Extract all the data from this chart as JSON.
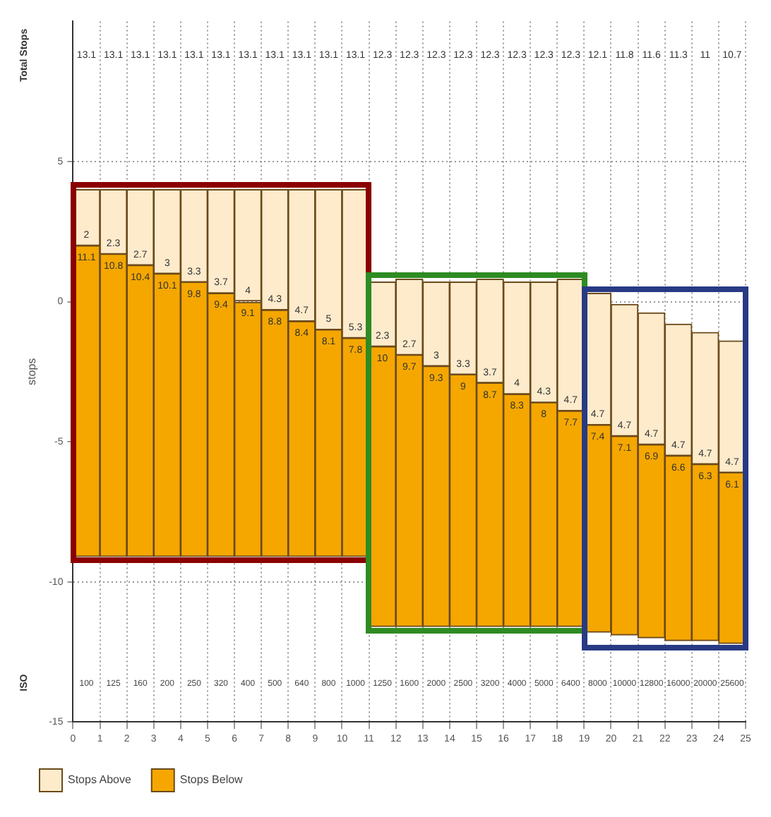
{
  "chart_data": {
    "type": "bar",
    "ylabel": "stops",
    "categories": [
      "100",
      "125",
      "160",
      "200",
      "250",
      "320",
      "400",
      "500",
      "640",
      "800",
      "1000",
      "1250",
      "1600",
      "2000",
      "2500",
      "3200",
      "4000",
      "5000",
      "6400",
      "8000",
      "10000",
      "12800",
      "16000",
      "20000",
      "25600"
    ],
    "series": [
      {
        "name": "Stops Below",
        "color": "#f5a700",
        "base": [
          -9.1,
          -9.1,
          -9.1,
          -9.1,
          -9.1,
          -9.1,
          -9.1,
          -9.1,
          -9.1,
          -9.1,
          -9.1,
          -11.6,
          -11.6,
          -11.6,
          -11.6,
          -11.6,
          -11.6,
          -11.6,
          -11.6,
          -11.8,
          -11.9,
          -12,
          -12.1,
          -12.1,
          -12.2
        ],
        "values": [
          11.1,
          10.8,
          10.4,
          10.1,
          9.8,
          9.4,
          9.1,
          8.8,
          8.4,
          8.1,
          7.8,
          10,
          9.7,
          9.3,
          9,
          8.7,
          8.3,
          8,
          7.7,
          7.4,
          7.1,
          6.9,
          6.6,
          6.3,
          6.1
        ]
      },
      {
        "name": "Stops Above",
        "color": "#fdebcc",
        "base": [
          2,
          1.7,
          1.3,
          1,
          0.7,
          0.3,
          0,
          -0.3,
          -0.7,
          -1,
          -1.3,
          -1.6,
          -1.9,
          -2.3,
          -2.6,
          -2.9,
          -3.3,
          -3.6,
          -3.9,
          -4.4,
          -4.8,
          -5.1,
          -5.5,
          -5.8,
          -6.1
        ],
        "values": [
          2,
          2.3,
          2.7,
          3,
          3.3,
          3.7,
          4,
          4.3,
          4.7,
          5,
          5.3,
          2.3,
          2.7,
          3,
          3.3,
          3.7,
          4,
          4.3,
          4.7,
          4.7,
          4.7,
          4.7,
          4.7,
          4.7,
          4.7
        ]
      }
    ],
    "data_labels": true,
    "x2lim": [
      0,
      25
    ],
    "x2ticks": [
      0,
      1,
      2,
      3,
      4,
      5,
      6,
      7,
      8,
      9,
      10,
      11,
      12,
      13,
      14,
      15,
      16,
      17,
      18,
      19,
      20,
      21,
      22,
      23,
      24,
      25
    ],
    "ylim": [
      -15,
      10
    ],
    "yticks": [
      -15,
      -10,
      -5,
      0,
      5
    ],
    "grid": true,
    "legend": "bottom left",
    "annotations": [
      "Total Stops",
      "ISO",
      "13.1",
      "13.1",
      "13.1",
      "13.1",
      "13.1",
      "13.1",
      "13.1",
      "13.1",
      "13.1",
      "13.1",
      "13.1",
      "12.3",
      "12.3",
      "12.3",
      "12.3",
      "12.3",
      "12.3",
      "12.3",
      "12.3",
      "12.1",
      "11.8",
      "11.6",
      "11.3",
      "11",
      "10.7"
    ]
  }
}
